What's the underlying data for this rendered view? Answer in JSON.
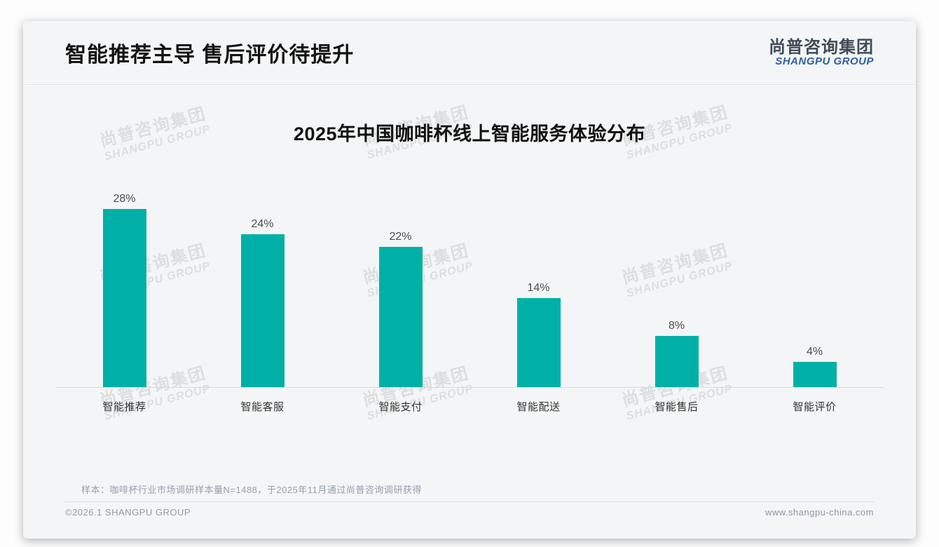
{
  "page": {
    "title": "智能推荐主导 售后评价待提升",
    "logo": {
      "cn": "尚普咨询集团",
      "en": "SHANGPU GROUP"
    },
    "watermark": {
      "cn": "尚普咨询集团",
      "en": "SHANGPU GROUP"
    },
    "footnote": "样本：咖啡杯行业市场调研样本量N=1488，于2025年11月通过尚普咨询调研获得",
    "footer": {
      "left": "©2026.1 SHANGPU GROUP",
      "right": "www.shangpu-china.com"
    }
  },
  "chart_data": {
    "type": "bar",
    "title": "2025年中国咖啡杯线上智能服务体验分布",
    "categories": [
      "智能推荐",
      "智能客服",
      "智能支付",
      "智能配送",
      "智能售后",
      "智能评价"
    ],
    "values": [
      28,
      24,
      22,
      14,
      8,
      4
    ],
    "value_labels": [
      "28%",
      "24%",
      "22%",
      "14%",
      "8%",
      "4%"
    ],
    "unit": "%",
    "bar_color": "#00B0A7",
    "value_label_color": "#4d4d4d",
    "xlabel": "",
    "ylabel": "",
    "ylim": [
      0,
      30
    ],
    "grid": false,
    "legend_position": "none"
  }
}
